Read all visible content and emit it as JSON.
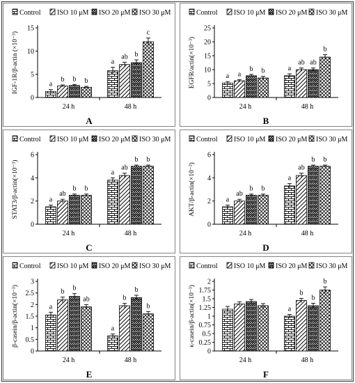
{
  "figure": {
    "panels": [
      {
        "letter": "A",
        "ylabel": "IGF-1R/β-actin (×10⁻³)"
      },
      {
        "letter": "B",
        "ylabel": "EGFR/actin(×10⁻³)"
      },
      {
        "letter": "C",
        "ylabel": "STAT3/β-actin(×10⁻³)"
      },
      {
        "letter": "D",
        "ylabel": "AKT/β-actin(×10⁻³)"
      },
      {
        "letter": "E",
        "ylabel": "β-casein/β-actin(×10⁻³)"
      },
      {
        "letter": "F",
        "ylabel": "κ-casein/β-actin(×10⁻³)"
      }
    ]
  },
  "chart_data": [
    {
      "panel": "A",
      "type": "bar",
      "categories": [
        "24 h",
        "48 h"
      ],
      "ylabel": "IGF-1R/β-actin (×10⁻³)",
      "ylim": [
        0,
        15
      ],
      "yticks": [
        0,
        5,
        10,
        15
      ],
      "legend_placement": "top",
      "series": [
        {
          "name": "Control",
          "values": [
            1.3,
            5.8
          ],
          "errors": [
            0.4,
            0.7
          ],
          "letters": [
            "a",
            "a"
          ]
        },
        {
          "name": "ISO 10 μM",
          "values": [
            2.5,
            7.1
          ],
          "errors": [
            0.2,
            0.5
          ],
          "letters": [
            "b",
            "ab"
          ]
        },
        {
          "name": "ISO 20 μM",
          "values": [
            2.6,
            7.5
          ],
          "errors": [
            0.2,
            0.6
          ],
          "letters": [
            "b",
            "b"
          ]
        },
        {
          "name": "ISO 30 μM",
          "values": [
            2.2,
            12.0
          ],
          "errors": [
            0.2,
            0.8
          ],
          "letters": [
            "b",
            "c"
          ]
        }
      ]
    },
    {
      "panel": "B",
      "type": "bar",
      "categories": [
        "24 h",
        "48 h"
      ],
      "ylabel": "EGFR/actin(×10⁻³)",
      "ylim": [
        0,
        25
      ],
      "yticks": [
        0,
        5,
        10,
        15,
        20,
        25
      ],
      "legend_placement": "top",
      "series": [
        {
          "name": "Control",
          "values": [
            5.2,
            7.8
          ],
          "errors": [
            0.5,
            0.7
          ],
          "letters": [
            "a",
            "a"
          ]
        },
        {
          "name": "ISO 10 μM",
          "values": [
            6.0,
            10.0
          ],
          "errors": [
            0.4,
            0.6
          ],
          "letters": [
            "a",
            "ab"
          ]
        },
        {
          "name": "ISO 20 μM",
          "values": [
            7.8,
            10.0
          ],
          "errors": [
            0.5,
            0.6
          ],
          "letters": [
            "b",
            "ab"
          ]
        },
        {
          "name": "ISO 30 μM",
          "values": [
            7.0,
            14.5
          ],
          "errors": [
            0.6,
            0.9
          ],
          "letters": [
            "b",
            "b"
          ]
        }
      ]
    },
    {
      "panel": "C",
      "type": "bar",
      "categories": [
        "24 h",
        "48 h"
      ],
      "ylabel": "STAT3/β-actin(×10⁻³)",
      "ylim": [
        0,
        6
      ],
      "yticks": [
        0,
        2,
        4,
        6
      ],
      "legend_placement": "top",
      "series": [
        {
          "name": "Control",
          "values": [
            1.5,
            3.8
          ],
          "errors": [
            0.15,
            0.2
          ],
          "letters": [
            "a",
            "a"
          ]
        },
        {
          "name": "ISO 10 μM",
          "values": [
            2.0,
            4.2
          ],
          "errors": [
            0.15,
            0.2
          ],
          "letters": [
            "ab",
            "ab"
          ]
        },
        {
          "name": "ISO 20 μM",
          "values": [
            2.5,
            5.0
          ],
          "errors": [
            0.1,
            0.1
          ],
          "letters": [
            "b",
            "b"
          ]
        },
        {
          "name": "ISO 30 μM",
          "values": [
            2.5,
            5.0
          ],
          "errors": [
            0.1,
            0.1
          ],
          "letters": [
            "b",
            "b"
          ]
        }
      ]
    },
    {
      "panel": "D",
      "type": "bar",
      "categories": [
        "24 h",
        "48 h"
      ],
      "ylabel": "AKT/β-actin(×10⁻³)",
      "ylim": [
        0,
        6
      ],
      "yticks": [
        0,
        2,
        4,
        6
      ],
      "legend_placement": "top",
      "series": [
        {
          "name": "Control",
          "values": [
            1.5,
            3.3
          ],
          "errors": [
            0.15,
            0.2
          ],
          "letters": [
            "a",
            "a"
          ]
        },
        {
          "name": "ISO 10 μM",
          "values": [
            2.0,
            4.2
          ],
          "errors": [
            0.15,
            0.2
          ],
          "letters": [
            "ab",
            "ab"
          ]
        },
        {
          "name": "ISO 20 μM",
          "values": [
            2.5,
            5.0
          ],
          "errors": [
            0.1,
            0.1
          ],
          "letters": [
            "b",
            "b"
          ]
        },
        {
          "name": "ISO 30 μM",
          "values": [
            2.5,
            5.0
          ],
          "errors": [
            0.1,
            0.1
          ],
          "letters": [
            "b",
            "b"
          ]
        }
      ]
    },
    {
      "panel": "E",
      "type": "bar",
      "categories": [
        "24 h",
        "48 h"
      ],
      "ylabel": "β-casein/β-actin(×10⁻³)",
      "ylim": [
        0,
        3
      ],
      "yticks": [
        0,
        0.5,
        1,
        1.5,
        2,
        2.5,
        3
      ],
      "legend_placement": "top",
      "series": [
        {
          "name": "Control",
          "values": [
            1.55,
            0.65
          ],
          "errors": [
            0.12,
            0.08
          ],
          "letters": [
            "a",
            "a"
          ]
        },
        {
          "name": "ISO 10 μM",
          "values": [
            2.2,
            1.95
          ],
          "errors": [
            0.12,
            0.1
          ],
          "letters": [
            "b",
            "b"
          ]
        },
        {
          "name": "ISO 20 μM",
          "values": [
            2.35,
            2.3
          ],
          "errors": [
            0.12,
            0.1
          ],
          "letters": [
            "b",
            "b"
          ]
        },
        {
          "name": "ISO 30 μM",
          "values": [
            1.9,
            1.6
          ],
          "errors": [
            0.1,
            0.1
          ],
          "letters": [
            "ab",
            "b"
          ]
        }
      ]
    },
    {
      "panel": "F",
      "type": "bar",
      "categories": [
        "24 h",
        "48 h"
      ],
      "ylabel": "κ-casein/β-actin(×10⁻³)",
      "ylim": [
        0,
        2
      ],
      "yticks": [
        0,
        0.25,
        0.5,
        0.75,
        1,
        1.25,
        1.5,
        1.75,
        2
      ],
      "legend_placement": "top",
      "series": [
        {
          "name": "Control",
          "values": [
            1.2,
            1.0
          ],
          "errors": [
            0.08,
            0.05
          ],
          "letters": [
            "",
            "a"
          ]
        },
        {
          "name": "ISO 10 μM",
          "values": [
            1.35,
            1.45
          ],
          "errors": [
            0.06,
            0.06
          ],
          "letters": [
            "",
            "b"
          ]
        },
        {
          "name": "ISO 20 μM",
          "values": [
            1.42,
            1.3
          ],
          "errors": [
            0.06,
            0.07
          ],
          "letters": [
            "",
            "b"
          ]
        },
        {
          "name": "ISO 30 μM",
          "values": [
            1.3,
            1.75
          ],
          "errors": [
            0.06,
            0.09
          ],
          "letters": [
            "",
            "b"
          ]
        }
      ]
    }
  ]
}
